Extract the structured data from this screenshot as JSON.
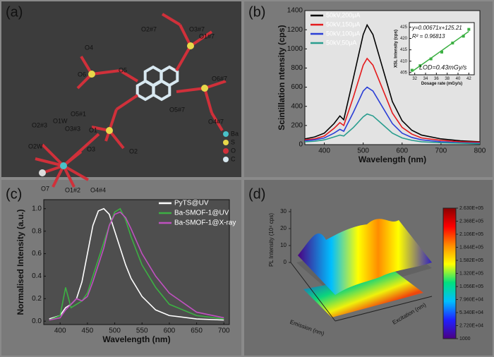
{
  "panel_labels": [
    "(a)",
    "(b)",
    "(c)",
    "(d)"
  ],
  "structure": {
    "atom_labels": [
      "O2#7",
      "O3#7",
      "O1#7",
      "O4",
      "O6",
      "O5",
      "O6#7",
      "O5#7",
      "O4#7",
      "O5#1",
      "O1W",
      "O2#3",
      "O3#3",
      "O1",
      "O2W",
      "O3",
      "O2",
      "O7",
      "O1#2",
      "O4#4"
    ],
    "legend": [
      "Ba",
      "S",
      "O",
      "C"
    ]
  },
  "chart_data": [
    {
      "type": "line",
      "xlabel": "Wavelength (nm)",
      "ylabel": "Scintillation ntensity (cps)",
      "x": [
        350,
        375,
        400,
        425,
        440,
        450,
        475,
        500,
        510,
        525,
        550,
        575,
        600,
        625,
        650,
        700,
        750,
        800
      ],
      "series": [
        {
          "name": "50kV,200μA",
          "color": "#000000",
          "values": [
            60,
            80,
            120,
            220,
            300,
            260,
            700,
            1150,
            1250,
            1150,
            800,
            450,
            250,
            150,
            100,
            60,
            40,
            30
          ]
        },
        {
          "name": "50kV,150μA",
          "color": "#e41a1c",
          "values": [
            50,
            60,
            90,
            170,
            230,
            200,
            500,
            830,
            900,
            830,
            580,
            330,
            180,
            110,
            70,
            45,
            30,
            25
          ]
        },
        {
          "name": "50kV,100μA",
          "color": "#2b3fd6",
          "values": [
            40,
            50,
            70,
            120,
            160,
            140,
            340,
            560,
            600,
            560,
            390,
            220,
            120,
            75,
            50,
            30,
            20,
            15
          ]
        },
        {
          "name": "50kV,50μA",
          "color": "#2a9d8f",
          "values": [
            30,
            35,
            50,
            80,
            100,
            90,
            180,
            290,
            320,
            300,
            210,
            120,
            70,
            45,
            30,
            20,
            15,
            10
          ]
        }
      ],
      "xlim": [
        350,
        800
      ],
      "xticks": [
        400,
        500,
        600,
        700,
        800
      ],
      "ylim": [
        0,
        1400
      ],
      "yticks": [
        0,
        200,
        400,
        600,
        800,
        1000,
        1200,
        1400
      ]
    },
    {
      "type": "scatter",
      "xlabel": "Dosage rate (mGy/s)",
      "ylabel": "XSL Intensity (cps)",
      "annotations": [
        "y=0.00671x+125.21",
        "R² = 0.96813",
        "LOD=0.43mGy/s"
      ],
      "x": [
        31.5,
        33,
        35,
        37,
        39,
        41,
        42
      ],
      "values": [
        406,
        408,
        411,
        414,
        418,
        421,
        424
      ],
      "color": "#3cb043",
      "xlim": [
        31,
        43
      ],
      "xticks": [
        32,
        34,
        36,
        38,
        40,
        42
      ],
      "ylim": [
        404,
        427
      ],
      "yticks": [
        405,
        410,
        415,
        420,
        425
      ]
    },
    {
      "type": "line",
      "xlabel": "Wavelength (nm)",
      "ylabel": "Normalised Intensity (a.u.)",
      "x": [
        380,
        400,
        410,
        420,
        430,
        440,
        450,
        460,
        470,
        480,
        490,
        500,
        510,
        520,
        530,
        550,
        575,
        600,
        650,
        700
      ],
      "series": [
        {
          "name": "PyTS@UV",
          "color": "#ffffff",
          "values": [
            0.02,
            0.05,
            0.12,
            0.15,
            0.2,
            0.35,
            0.6,
            0.85,
            0.98,
            1.0,
            0.95,
            0.8,
            0.65,
            0.5,
            0.38,
            0.22,
            0.1,
            0.05,
            0.02,
            0.01
          ]
        },
        {
          "name": "Ba-SMOF-1@UV",
          "color": "#3cb043",
          "values": [
            0.01,
            0.05,
            0.3,
            0.12,
            0.15,
            0.18,
            0.25,
            0.4,
            0.55,
            0.7,
            0.85,
            0.97,
            1.0,
            0.9,
            0.75,
            0.5,
            0.3,
            0.15,
            0.05,
            0.02
          ]
        },
        {
          "name": "Ba-SMOF-1@X-ray",
          "color": "#c050c0",
          "values": [
            0.01,
            0.03,
            0.1,
            0.15,
            0.2,
            0.18,
            0.22,
            0.35,
            0.5,
            0.65,
            0.85,
            0.95,
            0.97,
            0.92,
            0.82,
            0.6,
            0.4,
            0.25,
            0.08,
            0.03
          ]
        }
      ],
      "xlim": [
        370,
        710
      ],
      "xticks": [
        400,
        450,
        500,
        550,
        600,
        650,
        700
      ],
      "ylim": [
        -0.03,
        1.08
      ],
      "yticks": [
        {
          "value": 0,
          "label": "0.0"
        },
        0.2,
        0.4,
        0.6,
        0.8,
        {
          "value": 1,
          "label": "1.0"
        }
      ]
    },
    {
      "type": "surface",
      "zlabel": "PL Intensity (10⁴ cps)",
      "xlabel": "Emission (nm)",
      "ylabel": "Excitation (nm)",
      "zlim": [
        0,
        30
      ],
      "zticks": [
        0,
        10,
        20,
        30
      ],
      "clim": [
        1000,
        263000
      ],
      "colormap": [
        "#4b0082",
        "#2020ff",
        "#00bfff",
        "#00e07f",
        "#ffff00",
        "#ff8c00",
        "#ff0000",
        "#8b0000"
      ],
      "cticks": [
        {
          "value": 263000,
          "label": "2.630E+05"
        },
        {
          "value": 236800,
          "label": "2.368E+05"
        },
        {
          "value": 210600,
          "label": "2.106E+05"
        },
        {
          "value": 184400,
          "label": "1.844E+05"
        },
        {
          "value": 158200,
          "label": "1.582E+05"
        },
        {
          "value": 132000,
          "label": "1.320E+05"
        },
        {
          "value": 105600,
          "label": "1.056E+05"
        },
        {
          "value": 79600,
          "label": "7.960E+04"
        },
        {
          "value": 53400,
          "label": "5.340E+04"
        },
        {
          "value": 27200,
          "label": "2.720E+04"
        },
        1000
      ]
    }
  ]
}
